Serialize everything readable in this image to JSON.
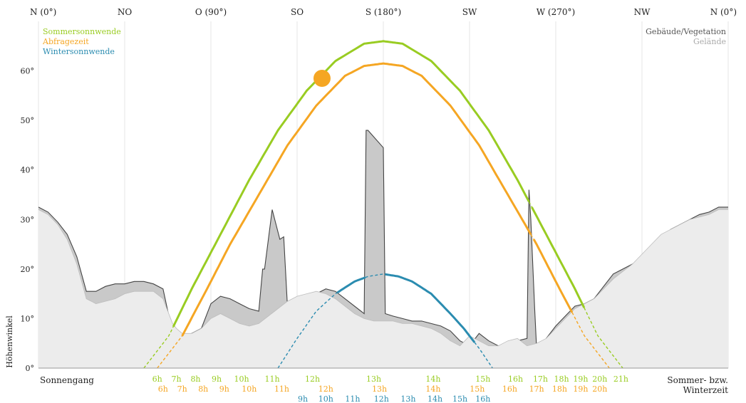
{
  "chart_data": {
    "type": "line",
    "title": "",
    "ylabel": "Höhenwinkel",
    "xlabel": "",
    "xlim": [
      0,
      360
    ],
    "ylim": [
      0,
      70
    ],
    "y_ticks": [
      "0°",
      "10°",
      "20°",
      "30°",
      "40°",
      "50°",
      "60°"
    ],
    "y_tick_values": [
      0,
      10,
      20,
      30,
      40,
      50,
      60
    ],
    "grid": "vertical lines at compass directions",
    "compass": [
      {
        "label": "N (0°)",
        "az": 0
      },
      {
        "label": "NO",
        "az": 45
      },
      {
        "label": "O (90°)",
        "az": 90
      },
      {
        "label": "SO",
        "az": 135
      },
      {
        "label": "S (180°)",
        "az": 180
      },
      {
        "label": "SW",
        "az": 225
      },
      {
        "label": "W (270°)",
        "az": 270
      },
      {
        "label": "NW",
        "az": 315
      },
      {
        "label": "N (0°)",
        "az": 360
      }
    ],
    "legend_position": "top-left and top-right",
    "legend_left": [
      {
        "label": "Sommersonnwende",
        "color": "#99cc22"
      },
      {
        "label": "Abfragezeit",
        "color": "#f5a623"
      },
      {
        "label": "Wintersonnwende",
        "color": "#2b8cb0"
      }
    ],
    "legend_right": [
      {
        "label": "Gebäude/Vegetation",
        "color": "#555555"
      },
      {
        "label": "Gelände",
        "color": "#aaaaaa"
      }
    ],
    "series": [
      {
        "name": "Sommersonnwende",
        "color": "#99cc22",
        "x": [
          55,
          68,
          80,
          95,
          110,
          125,
          140,
          155,
          170,
          180,
          190,
          205,
          220,
          235,
          250,
          265,
          280,
          292,
          305
        ],
        "y": [
          0,
          6.5,
          16,
          27,
          38,
          48,
          56,
          62,
          65.5,
          66,
          65.5,
          62,
          56,
          48,
          38,
          27,
          16,
          6.5,
          0
        ]
      },
      {
        "name": "Abfragezeit",
        "color": "#f5a623",
        "x": [
          62,
          75,
          88,
          100,
          115,
          130,
          145,
          160,
          170,
          180,
          190,
          200,
          215,
          230,
          245,
          260,
          272,
          285,
          298
        ],
        "y": [
          0,
          6.5,
          16,
          25,
          35,
          45,
          53,
          59,
          61,
          61.5,
          61,
          59,
          53,
          45,
          35,
          25,
          16,
          6.5,
          0
        ]
      },
      {
        "name": "Wintersonnwende",
        "color": "#2b8cb0",
        "x": [
          125,
          135,
          145,
          155,
          165,
          172,
          180,
          188,
          195,
          205,
          215,
          222,
          230,
          237
        ],
        "y": [
          0,
          6,
          11.5,
          15,
          17.5,
          18.5,
          19,
          18.5,
          17.5,
          15,
          11,
          8,
          4,
          0
        ]
      }
    ],
    "current_sun": {
      "az": 148,
      "alt": 58.5,
      "color": "#f5a623"
    },
    "terrain": {
      "x": [
        0,
        5,
        10,
        15,
        20,
        25,
        30,
        35,
        40,
        45,
        50,
        55,
        60,
        65,
        70,
        72,
        75,
        80,
        85,
        90,
        95,
        100,
        105,
        110,
        115,
        120,
        125,
        130,
        135,
        140,
        145,
        150,
        155,
        160,
        165,
        170,
        175,
        180,
        185,
        190,
        195,
        200,
        205,
        210,
        215,
        220,
        225,
        230,
        235,
        240,
        245,
        250,
        255,
        260,
        265,
        270,
        275,
        280,
        285,
        290,
        295,
        300,
        305,
        310,
        315,
        320,
        325,
        330,
        335,
        340,
        345,
        350,
        355,
        360
      ],
      "y": [
        32,
        31,
        29,
        26,
        21,
        14,
        13,
        13.5,
        14,
        15,
        15.5,
        15.5,
        15.5,
        14,
        9,
        8,
        7,
        7,
        8,
        10,
        11,
        10,
        9,
        8.5,
        9,
        10.5,
        12,
        13.5,
        14.5,
        15,
        15.5,
        15,
        14,
        12.5,
        11,
        10,
        9.5,
        9.5,
        9.5,
        9,
        9,
        8.5,
        8,
        7,
        5.5,
        4.5,
        6.5,
        5.5,
        4.5,
        4.5,
        5.5,
        6,
        4.5,
        5,
        6,
        8,
        10,
        12,
        13,
        14,
        16,
        18,
        19.5,
        21,
        23,
        25,
        27,
        28,
        29,
        30,
        30.5,
        31,
        32,
        32
      ]
    },
    "buildings": [
      {
        "x": [
          0,
          5,
          10,
          15,
          20,
          25,
          30,
          35,
          40,
          45,
          50,
          55,
          60,
          65,
          70,
          72,
          75,
          80,
          85,
          90,
          95,
          100,
          105,
          110,
          115,
          117,
          118,
          122,
          126,
          128,
          130,
          135,
          140,
          145,
          150,
          155,
          160,
          170,
          171,
          172,
          180,
          181,
          185,
          190,
          195,
          200,
          205,
          210,
          215,
          220,
          225,
          230,
          235,
          240,
          245,
          250,
          255,
          256,
          257,
          259,
          260,
          262,
          265,
          270,
          275,
          280,
          285,
          290,
          295,
          300,
          305,
          310,
          315,
          320,
          325,
          330,
          335,
          340,
          345,
          350,
          355,
          360
        ],
        "y": [
          32.5,
          31.5,
          29.5,
          27,
          22.5,
          15.5,
          15.5,
          16.5,
          17,
          17,
          17.5,
          17.5,
          17,
          16,
          7,
          6.5,
          6.5,
          7,
          8,
          13,
          14.5,
          14,
          13,
          12,
          11.5,
          20,
          20,
          32,
          26,
          26.5,
          12,
          13,
          13.5,
          15,
          16,
          15.5,
          14,
          11,
          48,
          48,
          44.5,
          11,
          10.5,
          10,
          9.5,
          9.5,
          9,
          8.5,
          7.5,
          5.5,
          4.5,
          7,
          5.5,
          4.5,
          4.5,
          5.5,
          6,
          36,
          30,
          12,
          4,
          4.5,
          6,
          8.5,
          10.5,
          12.5,
          13,
          14,
          16.5,
          19,
          20,
          21,
          22,
          24,
          26,
          28,
          29,
          30,
          31,
          31.5,
          32.5,
          32.5
        ]
      }
    ],
    "x_hour_rows": [
      {
        "name": "Sommerzeit Sommersonnwende",
        "color": "#99cc22",
        "offset_row": 0,
        "ticks": [
          {
            "label": "6h",
            "az": 62
          },
          {
            "label": "7h",
            "az": 72
          },
          {
            "label": "8h",
            "az": 82
          },
          {
            "label": "9h",
            "az": 93
          },
          {
            "label": "10h",
            "az": 106
          },
          {
            "label": "11h",
            "az": 122
          },
          {
            "label": "12h",
            "az": 143
          },
          {
            "label": "13h",
            "az": 175
          },
          {
            "label": "14h",
            "az": 206
          },
          {
            "label": "15h",
            "az": 232
          },
          {
            "label": "16h",
            "az": 249
          },
          {
            "label": "17h",
            "az": 262
          },
          {
            "label": "18h",
            "az": 273
          },
          {
            "label": "19h",
            "az": 283
          },
          {
            "label": "20h",
            "az": 293
          },
          {
            "label": "21h",
            "az": 304
          }
        ]
      },
      {
        "name": "Sommerzeit Abfragezeit",
        "color": "#f5a623",
        "offset_row": 1,
        "ticks": [
          {
            "label": "6h",
            "az": 65
          },
          {
            "label": "7h",
            "az": 75
          },
          {
            "label": "8h",
            "az": 86
          },
          {
            "label": "9h",
            "az": 97
          },
          {
            "label": "10h",
            "az": 110
          },
          {
            "label": "11h",
            "az": 127
          },
          {
            "label": "12h",
            "az": 150
          },
          {
            "label": "13h",
            "az": 178
          },
          {
            "label": "14h",
            "az": 206
          },
          {
            "label": "15h",
            "az": 229
          },
          {
            "label": "16h",
            "az": 246
          },
          {
            "label": "17h",
            "az": 260
          },
          {
            "label": "18h",
            "az": 272
          },
          {
            "label": "19h",
            "az": 283
          },
          {
            "label": "20h",
            "az": 293
          }
        ]
      },
      {
        "name": "Winterzeit Wintersonnwende",
        "color": "#2b8cb0",
        "offset_row": 2,
        "ticks": [
          {
            "label": "9h",
            "az": 138
          },
          {
            "label": "10h",
            "az": 150
          },
          {
            "label": "11h",
            "az": 164
          },
          {
            "label": "12h",
            "az": 179
          },
          {
            "label": "13h",
            "az": 193
          },
          {
            "label": "14h",
            "az": 207
          },
          {
            "label": "15h",
            "az": 220
          },
          {
            "label": "16h",
            "az": 232
          }
        ]
      }
    ],
    "footer_left": "Sonnengang",
    "footer_right_line1": "Sommer- bzw.",
    "footer_right_line2": "Winterzeit"
  }
}
